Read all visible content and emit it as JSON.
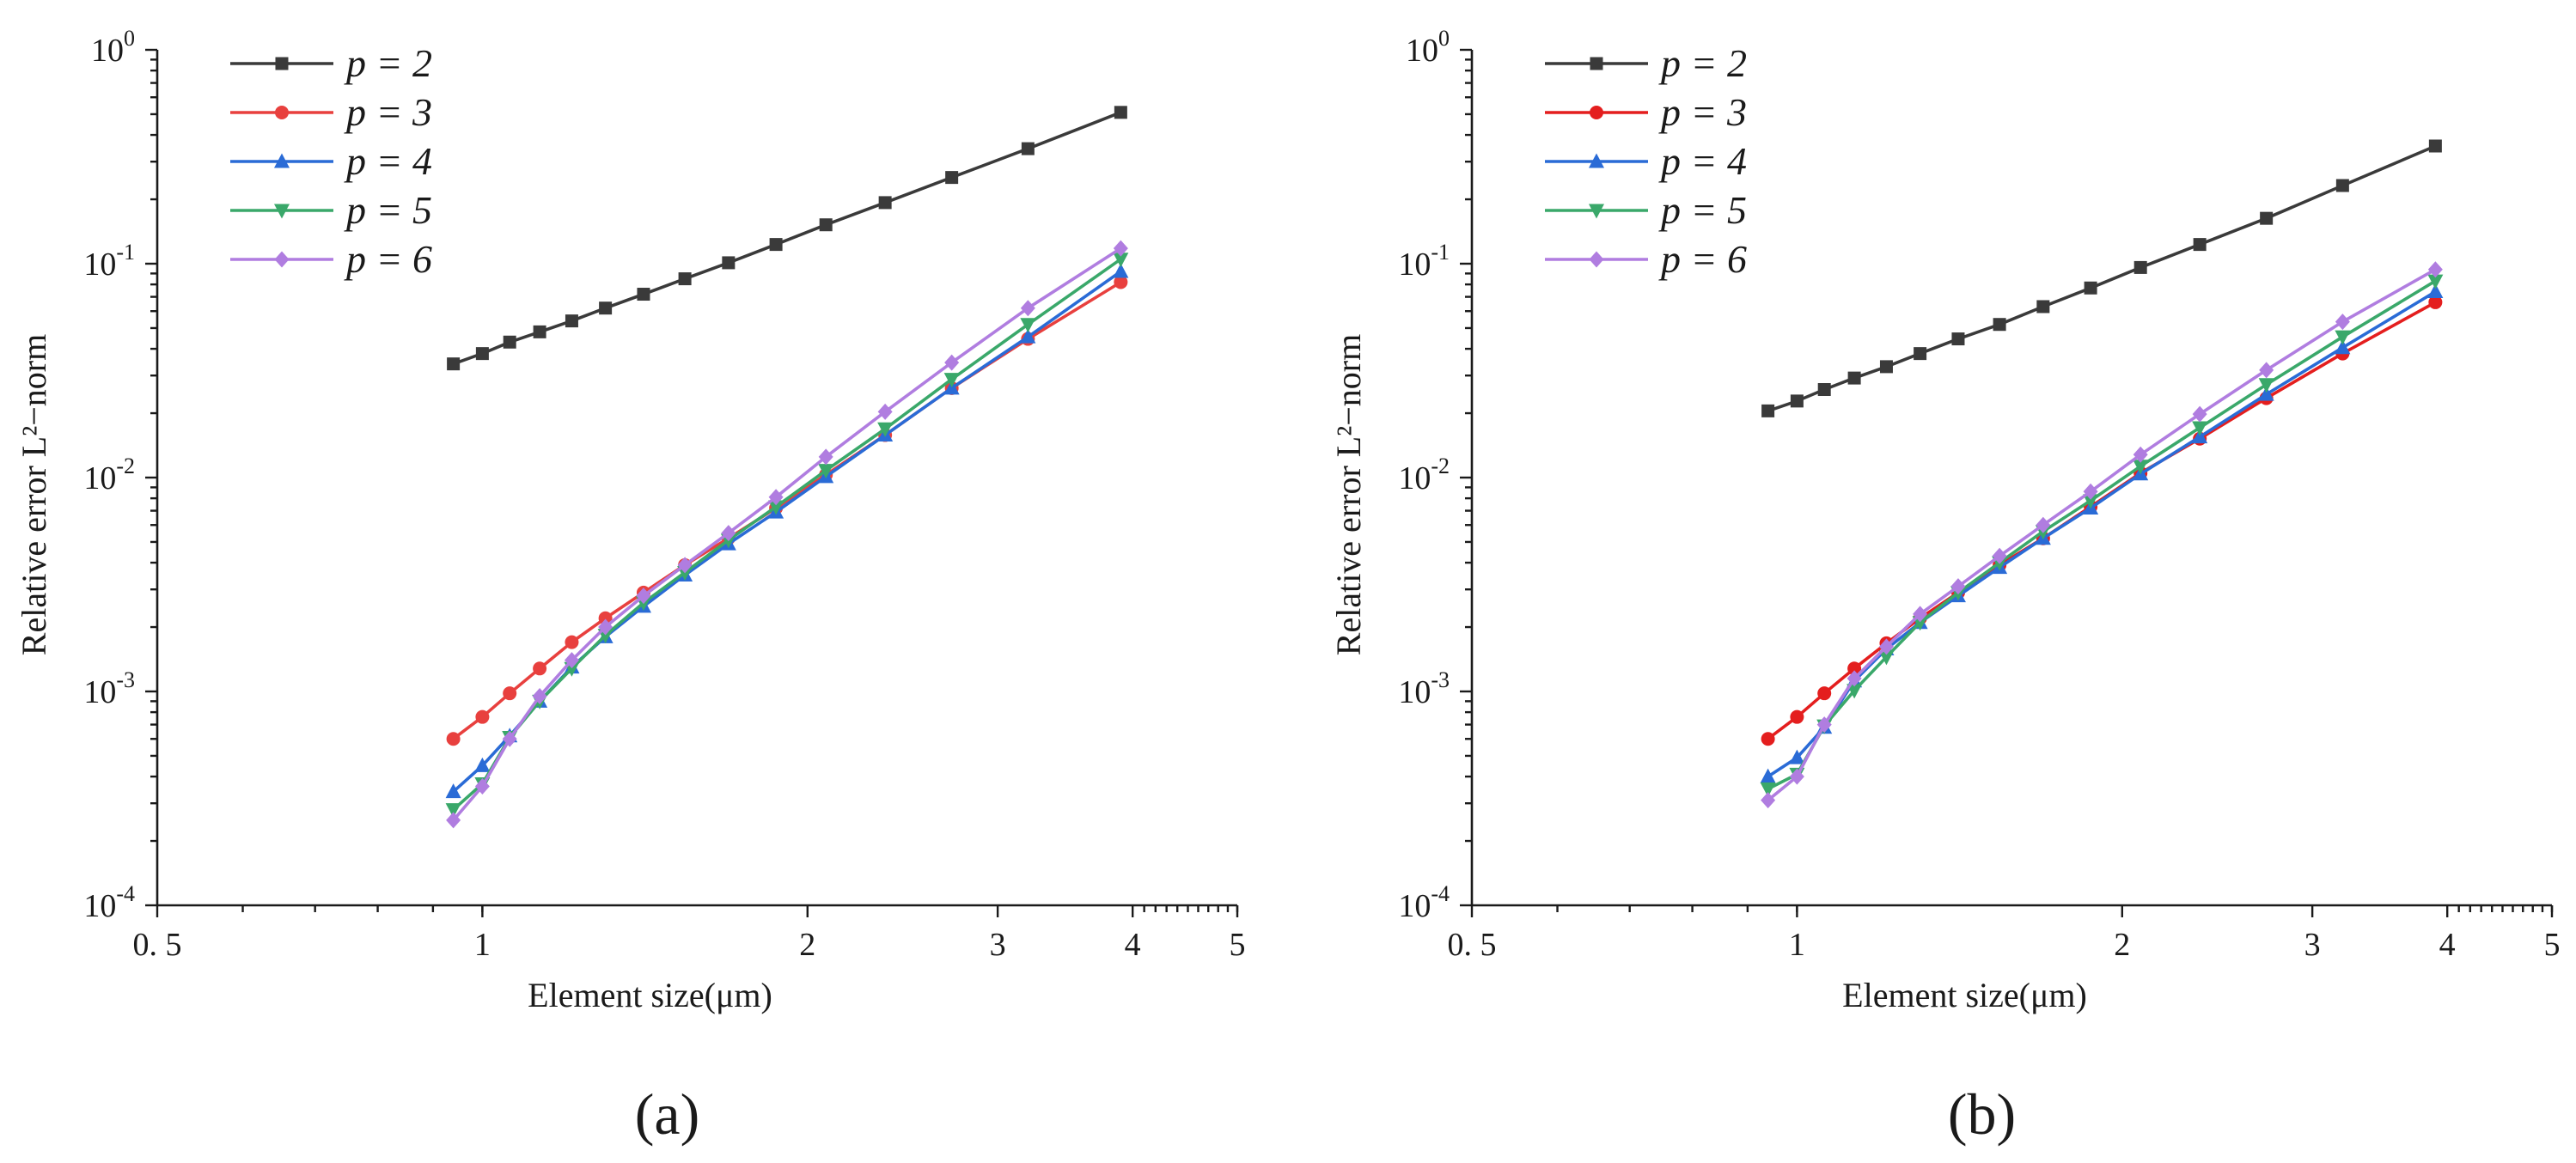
{
  "chart_data": [
    {
      "type": "line",
      "panel_label": "(a)",
      "xscale": "log",
      "yscale": "log",
      "xlabel": "Element size(μm)",
      "ylabel": "Relative error L²−norm",
      "xlim": [
        0.5,
        5
      ],
      "ylim": [
        0.0001,
        1
      ],
      "x_ticks": [
        {
          "value": 0.5,
          "label": "0. 5"
        },
        {
          "value": 1,
          "label": "1"
        },
        {
          "value": 2,
          "label": "2"
        },
        {
          "value": 3,
          "label": "3"
        },
        {
          "value": 4,
          "label": "4"
        },
        {
          "value": 5,
          "label": "5"
        }
      ],
      "y_ticks": [
        {
          "value": 0.0001,
          "base": "10",
          "exp": "-4"
        },
        {
          "value": 0.001,
          "base": "10",
          "exp": "-3"
        },
        {
          "value": 0.01,
          "base": "10",
          "exp": "-2"
        },
        {
          "value": 0.1,
          "base": "10",
          "exp": "-1"
        },
        {
          "value": 1,
          "base": "10",
          "exp": "0"
        }
      ],
      "legend": {
        "location": "top-left"
      },
      "x": [
        0.94,
        1.0,
        1.06,
        1.13,
        1.21,
        1.3,
        1.41,
        1.54,
        1.69,
        1.87,
        2.08,
        2.36,
        2.72,
        3.2,
        3.9
      ],
      "series": [
        {
          "name": "p = 2",
          "color": "#3a3a3a",
          "marker": "square",
          "values": [
            0.034,
            0.038,
            0.043,
            0.048,
            0.054,
            0.062,
            0.072,
            0.085,
            0.101,
            0.123,
            0.152,
            0.193,
            0.253,
            0.345,
            0.51
          ]
        },
        {
          "name": "p = 3",
          "color": "#e8403e",
          "marker": "circle",
          "values": [
            0.0006,
            0.00076,
            0.00098,
            0.00128,
            0.0017,
            0.0022,
            0.0029,
            0.0039,
            0.0052,
            0.0072,
            0.0103,
            0.0158,
            0.0262,
            0.0445,
            0.082
          ]
        },
        {
          "name": "p = 4",
          "color": "#2a6bd6",
          "marker": "triangle-up",
          "values": [
            0.00034,
            0.00045,
            0.00062,
            0.0009,
            0.0013,
            0.0018,
            0.0025,
            0.0035,
            0.0049,
            0.0069,
            0.0101,
            0.0158,
            0.0262,
            0.0455,
            0.092
          ]
        },
        {
          "name": "p = 5",
          "color": "#3aa86a",
          "marker": "triangle-down",
          "values": [
            0.00028,
            0.00037,
            0.00061,
            0.0009,
            0.00128,
            0.00183,
            0.0026,
            0.0036,
            0.0051,
            0.0073,
            0.0108,
            0.0169,
            0.0288,
            0.052,
            0.105
          ]
        },
        {
          "name": "p = 6",
          "color": "#b07de0",
          "marker": "diamond",
          "values": [
            0.00025,
            0.00036,
            0.0006,
            0.00095,
            0.0014,
            0.002,
            0.0028,
            0.0039,
            0.0055,
            0.0081,
            0.0125,
            0.0203,
            0.0345,
            0.062,
            0.118
          ]
        }
      ]
    },
    {
      "type": "line",
      "panel_label": "(b)",
      "xscale": "log",
      "yscale": "log",
      "xlabel": "Element size(μm)",
      "ylabel": "Relative error L²−norm",
      "xlim": [
        0.5,
        5
      ],
      "ylim": [
        0.0001,
        1
      ],
      "x_ticks": [
        {
          "value": 0.5,
          "label": "0. 5"
        },
        {
          "value": 1,
          "label": "1"
        },
        {
          "value": 2,
          "label": "2"
        },
        {
          "value": 3,
          "label": "3"
        },
        {
          "value": 4,
          "label": "4"
        },
        {
          "value": 5,
          "label": "5"
        }
      ],
      "y_ticks": [
        {
          "value": 0.0001,
          "base": "10",
          "exp": "-4"
        },
        {
          "value": 0.001,
          "base": "10",
          "exp": "-3"
        },
        {
          "value": 0.01,
          "base": "10",
          "exp": "-2"
        },
        {
          "value": 0.1,
          "base": "10",
          "exp": "-1"
        },
        {
          "value": 1,
          "base": "10",
          "exp": "0"
        }
      ],
      "legend": {
        "location": "top-left"
      },
      "x": [
        0.94,
        1.0,
        1.06,
        1.13,
        1.21,
        1.3,
        1.41,
        1.54,
        1.69,
        1.87,
        2.08,
        2.36,
        2.72,
        3.2,
        3.9
      ],
      "series": [
        {
          "name": "p = 2",
          "color": "#3a3a3a",
          "marker": "square",
          "values": [
            0.0205,
            0.0228,
            0.0258,
            0.0292,
            0.033,
            0.038,
            0.0445,
            0.052,
            0.063,
            0.077,
            0.096,
            0.123,
            0.163,
            0.232,
            0.355
          ]
        },
        {
          "name": "p = 3",
          "color": "#e41e1e",
          "marker": "circle",
          "values": [
            0.0006,
            0.00076,
            0.00098,
            0.00128,
            0.00168,
            0.0022,
            0.0029,
            0.0039,
            0.0052,
            0.0073,
            0.0105,
            0.0152,
            0.0235,
            0.038,
            0.066
          ]
        },
        {
          "name": "p = 4",
          "color": "#2a6bd6",
          "marker": "triangle-up",
          "values": [
            0.0004,
            0.00049,
            0.00068,
            0.00112,
            0.00158,
            0.0021,
            0.0028,
            0.0038,
            0.0052,
            0.0072,
            0.0104,
            0.0155,
            0.0245,
            0.0405,
            0.074
          ]
        },
        {
          "name": "p = 5",
          "color": "#3aa86a",
          "marker": "triangle-down",
          "values": [
            0.00035,
            0.00041,
            0.00069,
            0.00101,
            0.00145,
            0.0021,
            0.0029,
            0.004,
            0.0056,
            0.0078,
            0.0113,
            0.0171,
            0.0272,
            0.0455,
            0.083
          ]
        },
        {
          "name": "p = 6",
          "color": "#b07de0",
          "marker": "diamond",
          "values": [
            0.00031,
            0.0004,
            0.0007,
            0.00115,
            0.00162,
            0.0023,
            0.0031,
            0.0043,
            0.006,
            0.0086,
            0.0128,
            0.0198,
            0.0318,
            0.0535,
            0.094
          ]
        }
      ]
    }
  ]
}
